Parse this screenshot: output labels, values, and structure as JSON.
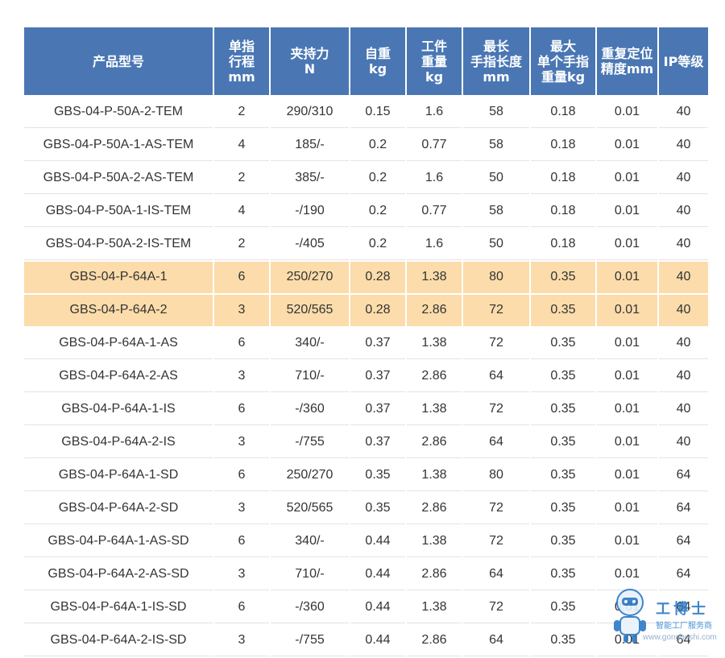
{
  "table": {
    "headers": [
      "产品型号",
      "单指\n行程\nmm",
      "夹持力\nN",
      "自重\nkg",
      "工件\n重量\nkg",
      "最长\n手指长度\nmm",
      "最大\n单个手指\n重量kg",
      "重复定位\n精度mm",
      "IP等级"
    ],
    "rows": [
      [
        "GBS-04-P-50A-2-TEM",
        "2",
        "290/310",
        "0.15",
        "1.6",
        "58",
        "0.18",
        "0.01",
        "40"
      ],
      [
        "GBS-04-P-50A-1-AS-TEM",
        "4",
        "185/-",
        "0.2",
        "0.77",
        "58",
        "0.18",
        "0.01",
        "40"
      ],
      [
        "GBS-04-P-50A-2-AS-TEM",
        "2",
        "385/-",
        "0.2",
        "1.6",
        "50",
        "0.18",
        "0.01",
        "40"
      ],
      [
        "GBS-04-P-50A-1-IS-TEM",
        "4",
        "-/190",
        "0.2",
        "0.77",
        "58",
        "0.18",
        "0.01",
        "40"
      ],
      [
        "GBS-04-P-50A-2-IS-TEM",
        "2",
        "-/405",
        "0.2",
        "1.6",
        "50",
        "0.18",
        "0.01",
        "40"
      ],
      [
        "GBS-04-P-64A-1",
        "6",
        "250/270",
        "0.28",
        "1.38",
        "80",
        "0.35",
        "0.01",
        "40"
      ],
      [
        "GBS-04-P-64A-2",
        "3",
        "520/565",
        "0.28",
        "2.86",
        "72",
        "0.35",
        "0.01",
        "40"
      ],
      [
        "GBS-04-P-64A-1-AS",
        "6",
        "340/-",
        "0.37",
        "1.38",
        "72",
        "0.35",
        "0.01",
        "40"
      ],
      [
        "GBS-04-P-64A-2-AS",
        "3",
        "710/-",
        "0.37",
        "2.86",
        "64",
        "0.35",
        "0.01",
        "40"
      ],
      [
        "GBS-04-P-64A-1-IS",
        "6",
        "-/360",
        "0.37",
        "1.38",
        "72",
        "0.35",
        "0.01",
        "40"
      ],
      [
        "GBS-04-P-64A-2-IS",
        "3",
        "-/755",
        "0.37",
        "2.86",
        "64",
        "0.35",
        "0.01",
        "40"
      ],
      [
        "GBS-04-P-64A-1-SD",
        "6",
        "250/270",
        "0.35",
        "1.38",
        "80",
        "0.35",
        "0.01",
        "64"
      ],
      [
        "GBS-04-P-64A-2-SD",
        "3",
        "520/565",
        "0.35",
        "2.86",
        "72",
        "0.35",
        "0.01",
        "64"
      ],
      [
        "GBS-04-P-64A-1-AS-SD",
        "6",
        "340/-",
        "0.44",
        "1.38",
        "72",
        "0.35",
        "0.01",
        "64"
      ],
      [
        "GBS-04-P-64A-2-AS-SD",
        "3",
        "710/-",
        "0.44",
        "2.86",
        "64",
        "0.35",
        "0.01",
        "64"
      ],
      [
        "GBS-04-P-64A-1-IS-SD",
        "6",
        "-/360",
        "0.44",
        "1.38",
        "72",
        "0.35",
        "0.01",
        "64"
      ],
      [
        "GBS-04-P-64A-2-IS-SD",
        "3",
        "-/755",
        "0.44",
        "2.86",
        "64",
        "0.35",
        "0.01",
        "64"
      ]
    ],
    "highlighted_rows": [
      5,
      6
    ],
    "colors": {
      "header_bg": "#4a77b4",
      "header_text": "#ffffff",
      "highlight_bg": "#fbdcaa",
      "text": "#333333"
    }
  },
  "watermark": {
    "brand": "工博士",
    "subtitle": "智能工厂服务商",
    "url": "www.gongboshi.com",
    "icon": "robot-mascot-icon"
  }
}
